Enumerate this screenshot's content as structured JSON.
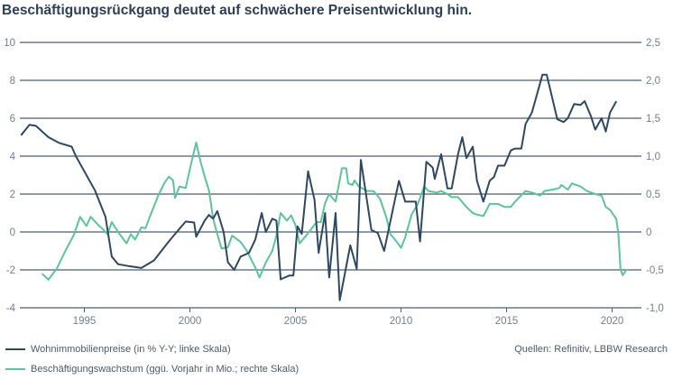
{
  "chart_data": {
    "type": "line",
    "title": "Beschäftigungsrückgang deutet auf schwächere Preisentwicklung hin.",
    "source": "Quellen: Refinitiv, LBBW Research",
    "xlim": [
      1991.9,
      2021.0
    ],
    "x_ticks": [
      1995,
      2000,
      2005,
      2010,
      2015,
      2020
    ],
    "ylim_left": [
      -4,
      10
    ],
    "y_ticks_left": [
      "10",
      "8",
      "6",
      "4",
      "2",
      "0",
      "-2",
      "-4"
    ],
    "ylim_right": [
      -1.0,
      2.5
    ],
    "y_ticks_right": [
      "2,5",
      "2,0",
      "1,5",
      "1,0",
      "0,5",
      "0",
      "-0,5",
      "-1,0"
    ],
    "grid": true,
    "legend_placement": "bottom-left",
    "colors": {
      "price": "#2e4862",
      "employment": "#5cc49a",
      "grid": "#4a5d72"
    },
    "series": [
      {
        "name": "Wohnimmobilienpreise (in % Y-Y; linke Skala)",
        "axis": "left",
        "x": [
          1992.0,
          1992.4,
          1992.7,
          1993.3,
          1993.8,
          1994.4,
          1994.6,
          1995.5,
          1996.0,
          1996.3,
          1996.6,
          1997.1,
          1997.7,
          1998.3,
          1999.0,
          1999.8,
          2000.2,
          2000.3,
          2000.7,
          2000.9,
          2001.1,
          2001.3,
          2001.6,
          2001.8,
          2002.1,
          2002.4,
          2002.8,
          2003.1,
          2003.4,
          2003.6,
          2003.9,
          2004.1,
          2004.3,
          2004.7,
          2004.9,
          2005.1,
          2005.3,
          2005.6,
          2005.9,
          2006.1,
          2006.4,
          2006.6,
          2006.9,
          2007.1,
          2007.6,
          2007.9,
          2008.1,
          2008.6,
          2008.9,
          2009.2,
          2009.9,
          2010.2,
          2010.7,
          2010.9,
          2011.2,
          2011.5,
          2011.6,
          2011.9,
          2012.2,
          2012.4,
          2012.7,
          2012.9,
          2013.1,
          2013.4,
          2013.6,
          2013.9,
          2014.2,
          2014.4,
          2014.6,
          2014.9,
          2015.2,
          2015.4,
          2015.7,
          2015.9,
          2016.2,
          2016.4,
          2016.7,
          2016.9,
          2017.2,
          2017.4,
          2017.7,
          2017.9,
          2018.2,
          2018.5,
          2018.7,
          2019.0,
          2019.2,
          2019.5,
          2019.7,
          2019.9,
          2020.2
        ],
        "y": [
          5.1,
          5.65,
          5.6,
          5.0,
          4.7,
          4.5,
          4.0,
          2.2,
          0.8,
          -1.3,
          -1.7,
          -1.8,
          -1.9,
          -1.5,
          -0.5,
          0.55,
          0.5,
          -0.25,
          0.6,
          0.9,
          0.7,
          1.1,
          0.0,
          -1.6,
          -2.0,
          -1.3,
          -1.1,
          -0.4,
          1.0,
          0.0,
          0.7,
          0.6,
          -2.5,
          -2.3,
          -2.3,
          0.3,
          -0.1,
          3.2,
          1.7,
          -1.1,
          1.0,
          -2.4,
          1.0,
          -3.6,
          -0.7,
          -1.95,
          3.8,
          0.1,
          -0.05,
          -1.0,
          2.7,
          1.6,
          1.6,
          -0.5,
          3.7,
          3.4,
          2.8,
          4.1,
          2.3,
          2.3,
          4.1,
          5.0,
          3.9,
          4.5,
          2.7,
          1.6,
          2.7,
          2.9,
          3.5,
          3.5,
          4.3,
          4.4,
          4.4,
          5.7,
          6.3,
          7.1,
          8.3,
          8.3,
          6.9,
          5.95,
          5.8,
          6.0,
          6.75,
          6.7,
          6.9,
          6.1,
          5.4,
          6.0,
          5.3,
          6.3,
          6.9
        ]
      },
      {
        "name": "Beschäftigungswachstum (ggü. Vorjahr in Mio.; rechte Skala)",
        "axis": "right",
        "x": [
          1993.0,
          1993.3,
          1993.7,
          1994.1,
          1994.5,
          1994.8,
          1995.1,
          1995.3,
          1995.7,
          1995.8,
          1996.1,
          1996.3,
          1996.6,
          1997.0,
          1997.2,
          1997.4,
          1997.7,
          1997.9,
          1998.1,
          1998.5,
          1998.8,
          1999.0,
          1999.2,
          1999.3,
          1999.5,
          1999.8,
          2000.1,
          2000.3,
          2000.5,
          2000.7,
          2000.9,
          2001.1,
          2001.3,
          2001.5,
          2001.8,
          2002.0,
          2002.4,
          2002.7,
          2003.1,
          2003.3,
          2003.6,
          2003.9,
          2004.1,
          2004.3,
          2004.6,
          2004.8,
          2005.0,
          2005.2,
          2005.5,
          2006.0,
          2006.2,
          2006.4,
          2006.6,
          2006.9,
          2007.2,
          2007.4,
          2007.5,
          2007.7,
          2007.8,
          2008.0,
          2008.4,
          2008.7,
          2009.0,
          2009.3,
          2009.5,
          2009.8,
          2010.0,
          2010.2,
          2010.5,
          2010.8,
          2011.1,
          2011.3,
          2011.7,
          2011.9,
          2012.2,
          2012.4,
          2012.7,
          2013.1,
          2013.4,
          2013.6,
          2013.9,
          2014.2,
          2014.6,
          2014.9,
          2015.2,
          2015.4,
          2015.9,
          2016.2,
          2016.6,
          2016.8,
          2017.2,
          2017.5,
          2017.6,
          2017.9,
          2018.1,
          2018.5,
          2018.8,
          2019.2,
          2019.5,
          2019.7,
          2019.9,
          2020.2,
          2020.3,
          2020.4,
          2020.5,
          2020.7
        ],
        "y": [
          -0.55,
          -0.63,
          -0.48,
          -0.25,
          -0.04,
          0.2,
          0.08,
          0.2,
          0.08,
          0.06,
          -0.03,
          0.13,
          0.0,
          -0.15,
          -0.03,
          -0.1,
          0.06,
          0.05,
          0.2,
          0.48,
          0.65,
          0.73,
          0.68,
          0.45,
          0.6,
          0.58,
          0.95,
          1.18,
          0.93,
          0.73,
          0.55,
          0.18,
          -0.03,
          -0.22,
          -0.2,
          -0.05,
          -0.13,
          -0.25,
          -0.47,
          -0.6,
          -0.4,
          -0.25,
          -0.05,
          0.25,
          0.15,
          0.22,
          0.09,
          -0.15,
          -0.05,
          0.13,
          0.13,
          0.38,
          0.5,
          0.4,
          0.84,
          0.84,
          0.64,
          0.62,
          0.68,
          0.6,
          0.54,
          0.54,
          0.44,
          0.2,
          -0.03,
          -0.13,
          -0.21,
          -0.07,
          0.23,
          0.37,
          0.6,
          0.54,
          0.52,
          0.54,
          0.5,
          0.46,
          0.46,
          0.33,
          0.25,
          0.23,
          0.21,
          0.37,
          0.37,
          0.33,
          0.33,
          0.4,
          0.54,
          0.52,
          0.48,
          0.54,
          0.56,
          0.58,
          0.62,
          0.56,
          0.64,
          0.6,
          0.54,
          0.5,
          0.48,
          0.33,
          0.29,
          0.17,
          -0.03,
          -0.5,
          -0.57,
          -0.49
        ]
      }
    ]
  }
}
